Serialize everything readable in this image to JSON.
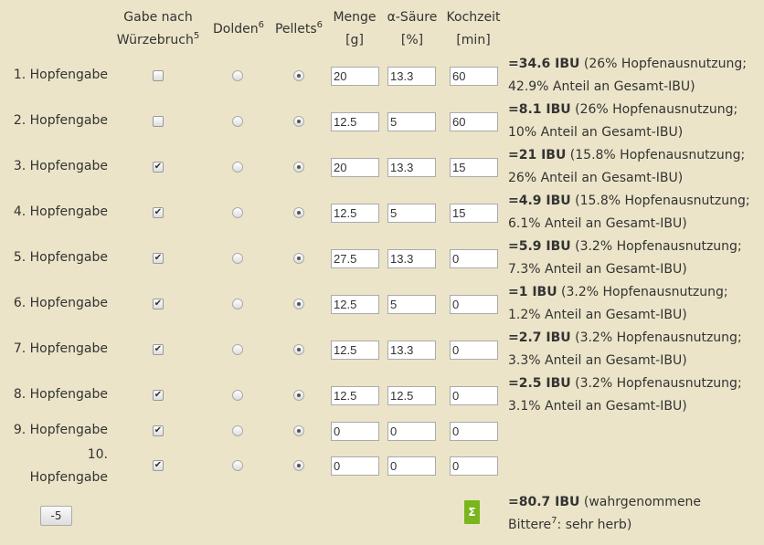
{
  "headers": {
    "wuerzebruch": [
      "Gabe nach",
      "Würzebruch"
    ],
    "wuerzebruch_sup": "5",
    "dolden": "Dolden",
    "dolden_sup": "6",
    "pellets": "Pellets",
    "pellets_sup": "6",
    "menge": [
      "Menge",
      "[g]"
    ],
    "alpha": [
      "α-Säure",
      "[%]"
    ],
    "kochzeit": [
      "Kochzeit",
      "[min]"
    ]
  },
  "rows": [
    {
      "label": "1. Hopfengabe",
      "checked": false,
      "pellets": true,
      "menge": "20",
      "alpha": "13.3",
      "kochzeit": "60",
      "ibu": "=34.6 IBU",
      "detail1": " (26% Hopfenausnutzung;",
      "detail2": "42.9% Anteil an Gesamt-IBU)"
    },
    {
      "label": "2. Hopfengabe",
      "checked": false,
      "pellets": true,
      "menge": "12.5",
      "alpha": "5",
      "kochzeit": "60",
      "ibu": "=8.1 IBU",
      "detail1": " (26% Hopfenausnutzung;",
      "detail2": "10% Anteil an Gesamt-IBU)"
    },
    {
      "label": "3. Hopfengabe",
      "checked": true,
      "pellets": true,
      "menge": "20",
      "alpha": "13.3",
      "kochzeit": "15",
      "ibu": "=21 IBU",
      "detail1": " (15.8% Hopfenausnutzung;",
      "detail2": "26% Anteil an Gesamt-IBU)"
    },
    {
      "label": "4. Hopfengabe",
      "checked": true,
      "pellets": true,
      "menge": "12.5",
      "alpha": "5",
      "kochzeit": "15",
      "ibu": "=4.9 IBU",
      "detail1": " (15.8% Hopfenausnutzung;",
      "detail2": "6.1% Anteil an Gesamt-IBU)"
    },
    {
      "label": "5. Hopfengabe",
      "checked": true,
      "pellets": true,
      "menge": "27.5",
      "alpha": "13.3",
      "kochzeit": "0",
      "ibu": "=5.9 IBU",
      "detail1": " (3.2% Hopfenausnutzung;",
      "detail2": "7.3% Anteil an Gesamt-IBU)"
    },
    {
      "label": "6. Hopfengabe",
      "checked": true,
      "pellets": true,
      "menge": "12.5",
      "alpha": "5",
      "kochzeit": "0",
      "ibu": "=1 IBU",
      "detail1": " (3.2% Hopfenausnutzung;",
      "detail2": "1.2% Anteil an Gesamt-IBU)"
    },
    {
      "label": "7. Hopfengabe",
      "checked": true,
      "pellets": true,
      "menge": "12.5",
      "alpha": "13.3",
      "kochzeit": "0",
      "ibu": "=2.7 IBU",
      "detail1": " (3.2% Hopfenausnutzung;",
      "detail2": "3.3% Anteil an Gesamt-IBU)"
    },
    {
      "label": "8. Hopfengabe",
      "checked": true,
      "pellets": true,
      "menge": "12.5",
      "alpha": "12.5",
      "kochzeit": "0",
      "ibu": "=2.5 IBU",
      "detail1": " (3.2% Hopfenausnutzung;",
      "detail2": "3.1% Anteil an Gesamt-IBU)"
    },
    {
      "label": "9. Hopfengabe",
      "checked": true,
      "pellets": true,
      "menge": "0",
      "alpha": "0",
      "kochzeit": "0"
    },
    {
      "label": "10. Hopfengabe",
      "checked": true,
      "pellets": true,
      "menge": "0",
      "alpha": "0",
      "kochzeit": "0"
    }
  ],
  "remove_button": "-5",
  "sum_icon": "Σ",
  "total": {
    "ibu": "=80.7 IBU",
    "text1": " (wahrgenommene",
    "text2a": "Bittere",
    "sup": "7",
    "text2b": ": sehr herb)"
  },
  "colors": {
    "background": "#ebe4c8",
    "sum_badge": "#7ab51d"
  }
}
